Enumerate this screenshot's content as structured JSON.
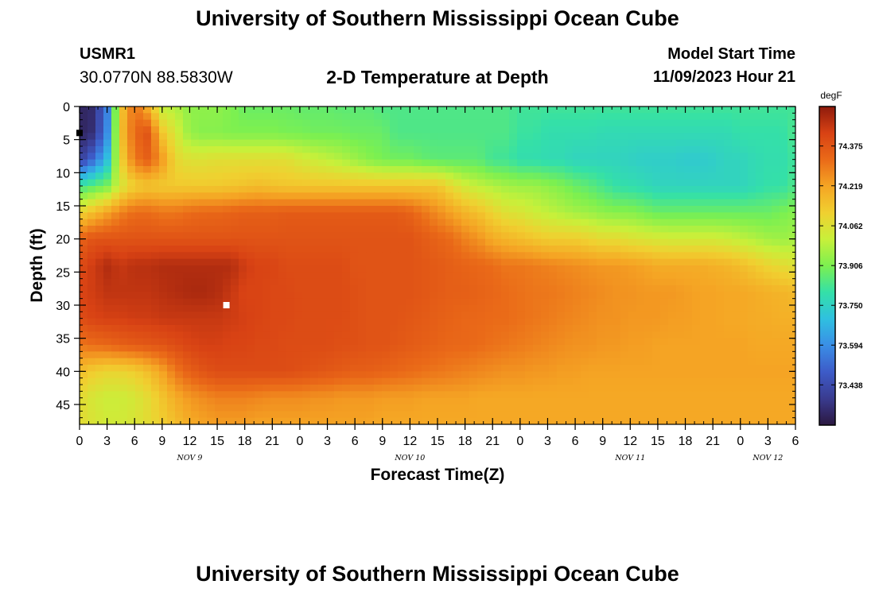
{
  "header": {
    "title": "University of Southern Mississippi Ocean Cube",
    "station": "USMR1",
    "coords": "30.0770N  88.5830W",
    "subtitle": "2-D Temperature at Depth",
    "model_start_label": "Model Start Time",
    "model_start_value": "11/09/2023 Hour 21"
  },
  "footer": {
    "title": "University of Southern Mississippi Ocean Cube"
  },
  "chart_data": {
    "type": "heatmap",
    "title": "2-D Temperature at Depth",
    "xlabel": "Forecast Time(Z)",
    "ylabel": "Depth (ft)",
    "xlim": [
      0,
      78
    ],
    "ylim": [
      48,
      0
    ],
    "x_tick_values": [
      0,
      3,
      6,
      9,
      12,
      15,
      18,
      21,
      24,
      27,
      30,
      33,
      36,
      39,
      42,
      45,
      48,
      51,
      54,
      57,
      60,
      63,
      66,
      69,
      72,
      75,
      78
    ],
    "x_tick_labels": [
      "0",
      "3",
      "6",
      "9",
      "12",
      "15",
      "18",
      "21",
      "0",
      "3",
      "6",
      "9",
      "12",
      "15",
      "18",
      "21",
      "0",
      "3",
      "6",
      "9",
      "12",
      "15",
      "18",
      "21",
      "0",
      "3",
      "6"
    ],
    "date_labels": [
      {
        "x": 12,
        "text": "NOV 9"
      },
      {
        "x": 36,
        "text": "NOV 10"
      },
      {
        "x": 60,
        "text": "NOV 11"
      },
      {
        "x": 75,
        "text": "NOV 12"
      }
    ],
    "y_ticks": [
      0,
      5,
      10,
      15,
      20,
      25,
      30,
      35,
      40,
      45
    ],
    "colorbar": {
      "unit": "degF",
      "min": 73.28,
      "max": 74.53,
      "ticks": [
        "74.375",
        "74.219",
        "74.062",
        "73.906",
        "73.750",
        "73.594",
        "73.438"
      ],
      "colors": [
        "#2b1840",
        "#3a3b8f",
        "#3d5bc8",
        "#3a8ee6",
        "#2fc0e0",
        "#34e0a8",
        "#7cf050",
        "#c8f03a",
        "#f0d030",
        "#f5a524",
        "#ea6a18",
        "#d84214",
        "#8e1a0c"
      ]
    },
    "markers": [
      {
        "x": 16,
        "y": 30,
        "color": "#ffffff"
      },
      {
        "x": 0,
        "y": 4,
        "color": "#000000"
      }
    ],
    "grid_x": [
      0,
      1.5,
      3,
      4.5,
      6,
      7.5,
      9,
      10.5,
      12,
      13.5,
      15,
      16.5,
      18,
      19.5,
      21,
      22.5,
      24,
      25.5,
      27,
      28.5,
      30,
      31.5,
      33,
      34.5,
      36,
      37.5,
      39,
      40.5,
      42,
      43.5,
      45,
      46.5,
      48,
      49.5,
      51,
      52.5,
      54,
      55.5,
      57,
      58.5,
      60,
      61.5,
      63,
      64.5,
      66,
      67.5,
      69,
      70.5,
      72,
      73.5,
      75,
      76.5,
      78
    ],
    "grid_y": [
      0,
      4,
      8,
      12,
      16,
      20,
      24,
      28,
      32,
      36,
      40,
      44,
      48
    ],
    "values": [
      [
        73.32,
        73.34,
        73.55,
        74.13,
        74.32,
        74.18,
        74.0,
        73.98,
        73.93,
        73.93,
        73.93,
        73.91,
        73.88,
        73.88,
        73.88,
        73.88,
        73.87,
        73.87,
        73.87,
        73.86,
        73.86,
        73.86,
        73.84,
        73.84,
        73.84,
        73.84,
        73.84,
        73.84,
        73.84,
        73.84,
        73.84,
        73.84,
        73.82,
        73.82,
        73.82,
        73.82,
        73.82,
        73.82,
        73.82,
        73.82,
        73.82,
        73.82,
        73.82,
        73.82,
        73.82,
        73.82,
        73.82,
        73.82,
        73.82,
        73.82,
        73.82,
        73.82,
        73.82
      ],
      [
        73.32,
        73.35,
        73.58,
        74.15,
        74.33,
        74.38,
        74.14,
        74.04,
        73.94,
        73.92,
        73.92,
        73.91,
        73.91,
        73.91,
        73.91,
        73.9,
        73.9,
        73.89,
        73.89,
        73.89,
        73.88,
        73.88,
        73.88,
        73.84,
        73.84,
        73.84,
        73.84,
        73.84,
        73.84,
        73.84,
        73.84,
        73.84,
        73.81,
        73.81,
        73.79,
        73.79,
        73.79,
        73.79,
        73.78,
        73.78,
        73.78,
        73.78,
        73.78,
        73.78,
        73.78,
        73.78,
        73.78,
        73.78,
        73.8,
        73.8,
        73.8,
        73.8,
        73.84
      ],
      [
        73.4,
        73.52,
        73.69,
        74.1,
        74.3,
        74.35,
        74.24,
        74.09,
        74.06,
        74.06,
        74.07,
        74.07,
        74.07,
        74.07,
        74.07,
        74.07,
        74.04,
        74.02,
        74.0,
        73.98,
        73.95,
        73.92,
        73.9,
        73.89,
        73.89,
        73.87,
        73.86,
        73.86,
        73.86,
        73.86,
        73.82,
        73.82,
        73.79,
        73.79,
        73.78,
        73.78,
        73.76,
        73.76,
        73.76,
        73.76,
        73.75,
        73.74,
        73.74,
        73.74,
        73.73,
        73.73,
        73.74,
        73.76,
        73.76,
        73.78,
        73.79,
        73.79,
        73.82
      ],
      [
        73.82,
        73.86,
        73.9,
        74.04,
        74.12,
        74.14,
        74.13,
        74.13,
        74.13,
        74.13,
        74.13,
        74.14,
        74.15,
        74.16,
        74.15,
        74.14,
        74.14,
        74.14,
        74.14,
        74.14,
        74.14,
        74.14,
        74.14,
        74.14,
        74.14,
        74.14,
        74.14,
        74.08,
        74.03,
        74.0,
        73.98,
        73.96,
        73.95,
        73.95,
        73.93,
        73.91,
        73.88,
        73.86,
        73.83,
        73.8,
        73.79,
        73.78,
        73.76,
        73.76,
        73.76,
        73.76,
        73.76,
        73.76,
        73.76,
        73.78,
        73.8,
        73.8,
        73.84
      ],
      [
        74.1,
        74.16,
        74.22,
        74.28,
        74.32,
        74.32,
        74.3,
        74.3,
        74.32,
        74.33,
        74.33,
        74.34,
        74.35,
        74.35,
        74.35,
        74.36,
        74.36,
        74.36,
        74.36,
        74.36,
        74.36,
        74.36,
        74.36,
        74.36,
        74.34,
        74.3,
        74.26,
        74.22,
        74.18,
        74.15,
        74.1,
        74.06,
        74.05,
        74.02,
        74.0,
        73.98,
        73.96,
        73.95,
        73.93,
        73.92,
        73.92,
        73.9,
        73.88,
        73.88,
        73.88,
        73.88,
        73.88,
        73.88,
        73.88,
        73.88,
        73.88,
        73.9,
        73.92
      ],
      [
        74.34,
        74.38,
        74.38,
        74.38,
        74.38,
        74.38,
        74.38,
        74.38,
        74.38,
        74.38,
        74.38,
        74.38,
        74.38,
        74.38,
        74.38,
        74.38,
        74.38,
        74.38,
        74.38,
        74.38,
        74.38,
        74.38,
        74.38,
        74.38,
        74.38,
        74.36,
        74.34,
        74.32,
        74.28,
        74.25,
        74.2,
        74.18,
        74.16,
        74.14,
        74.12,
        74.12,
        74.12,
        74.1,
        74.08,
        74.08,
        74.06,
        74.05,
        74.04,
        74.03,
        74.03,
        74.03,
        74.03,
        74.02,
        74.0,
        73.98,
        73.96,
        73.95,
        73.96
      ],
      [
        74.4,
        74.44,
        74.48,
        74.45,
        74.47,
        74.47,
        74.48,
        74.48,
        74.48,
        74.48,
        74.48,
        74.48,
        74.44,
        74.42,
        74.42,
        74.4,
        74.4,
        74.4,
        74.4,
        74.4,
        74.38,
        74.38,
        74.38,
        74.38,
        74.38,
        74.37,
        74.36,
        74.35,
        74.34,
        74.33,
        74.32,
        74.3,
        74.3,
        74.29,
        74.28,
        74.27,
        74.26,
        74.25,
        74.24,
        74.24,
        74.23,
        74.22,
        74.2,
        74.2,
        74.2,
        74.2,
        74.19,
        74.18,
        74.16,
        74.13,
        74.1,
        74.08,
        74.06
      ],
      [
        74.42,
        74.44,
        74.46,
        74.46,
        74.46,
        74.46,
        74.47,
        74.48,
        74.49,
        74.49,
        74.48,
        74.45,
        74.42,
        74.42,
        74.41,
        74.41,
        74.4,
        74.4,
        74.4,
        74.4,
        74.39,
        74.38,
        74.38,
        74.38,
        74.38,
        74.37,
        74.36,
        74.35,
        74.35,
        74.34,
        74.33,
        74.32,
        74.31,
        74.3,
        74.3,
        74.29,
        74.28,
        74.27,
        74.26,
        74.25,
        74.25,
        74.24,
        74.24,
        74.24,
        74.23,
        74.22,
        74.22,
        74.21,
        74.21,
        74.2,
        74.19,
        74.18,
        74.17
      ],
      [
        74.4,
        74.42,
        74.43,
        74.43,
        74.44,
        74.44,
        74.45,
        74.45,
        74.45,
        74.45,
        74.45,
        74.44,
        74.43,
        74.42,
        74.41,
        74.41,
        74.4,
        74.4,
        74.4,
        74.4,
        74.39,
        74.38,
        74.38,
        74.38,
        74.37,
        74.36,
        74.35,
        74.34,
        74.33,
        74.33,
        74.32,
        74.32,
        74.31,
        74.3,
        74.29,
        74.28,
        74.27,
        74.26,
        74.25,
        74.25,
        74.24,
        74.24,
        74.24,
        74.23,
        74.23,
        74.22,
        74.22,
        74.21,
        74.21,
        74.2,
        74.2,
        74.19,
        74.19
      ],
      [
        74.3,
        74.32,
        74.33,
        74.35,
        74.36,
        74.37,
        74.38,
        74.4,
        74.42,
        74.43,
        74.43,
        74.42,
        74.42,
        74.41,
        74.41,
        74.4,
        74.4,
        74.4,
        74.4,
        74.39,
        74.39,
        74.38,
        74.38,
        74.37,
        74.36,
        74.35,
        74.34,
        74.33,
        74.33,
        74.32,
        74.31,
        74.3,
        74.29,
        74.28,
        74.27,
        74.26,
        74.25,
        74.25,
        74.24,
        74.24,
        74.23,
        74.23,
        74.22,
        74.22,
        74.22,
        74.22,
        74.22,
        74.22,
        74.22,
        74.21,
        74.21,
        74.21,
        74.21
      ],
      [
        74.16,
        74.12,
        74.1,
        74.1,
        74.12,
        74.16,
        74.22,
        74.3,
        74.35,
        74.38,
        74.4,
        74.4,
        74.4,
        74.4,
        74.4,
        74.4,
        74.39,
        74.38,
        74.37,
        74.36,
        74.35,
        74.35,
        74.34,
        74.33,
        74.32,
        74.31,
        74.3,
        74.29,
        74.28,
        74.27,
        74.26,
        74.25,
        74.25,
        74.24,
        74.24,
        74.23,
        74.23,
        74.22,
        74.22,
        74.22,
        74.22,
        74.22,
        74.22,
        74.22,
        74.22,
        74.22,
        74.22,
        74.22,
        74.22,
        74.22,
        74.22,
        74.22,
        74.22
      ],
      [
        74.08,
        74.04,
        74.02,
        74.02,
        74.04,
        74.08,
        74.14,
        74.2,
        74.24,
        74.26,
        74.28,
        74.28,
        74.28,
        74.27,
        74.26,
        74.26,
        74.26,
        74.25,
        74.25,
        74.24,
        74.24,
        74.24,
        74.23,
        74.23,
        74.23,
        74.22,
        74.22,
        74.22,
        74.22,
        74.21,
        74.21,
        74.21,
        74.21,
        74.21,
        74.21,
        74.21,
        74.21,
        74.21,
        74.21,
        74.21,
        74.21,
        74.21,
        74.21,
        74.21,
        74.21,
        74.21,
        74.21,
        74.21,
        74.21,
        74.21,
        74.21,
        74.21,
        74.21
      ],
      [
        74.08,
        74.05,
        74.03,
        74.03,
        74.05,
        74.08,
        74.12,
        74.16,
        74.2,
        74.22,
        74.23,
        74.23,
        74.23,
        74.22,
        74.22,
        74.22,
        74.22,
        74.22,
        74.22,
        74.22,
        74.22,
        74.22,
        74.21,
        74.21,
        74.21,
        74.21,
        74.21,
        74.21,
        74.21,
        74.21,
        74.21,
        74.21,
        74.21,
        74.21,
        74.21,
        74.21,
        74.21,
        74.21,
        74.21,
        74.21,
        74.21,
        74.21,
        74.21,
        74.21,
        74.21,
        74.21,
        74.21,
        74.21,
        74.21,
        74.21,
        74.21,
        74.21,
        74.21
      ]
    ]
  }
}
